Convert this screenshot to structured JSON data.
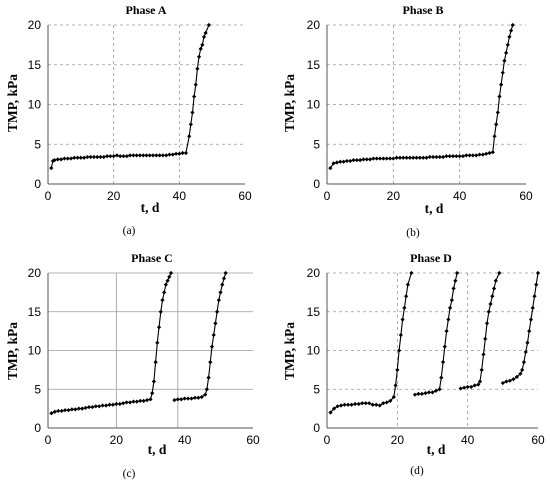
{
  "chart_data": [
    {
      "type": "line",
      "title": "Phase A",
      "caption": "(a)",
      "xlabel": "t, d",
      "ylabel": "TMP, kPa",
      "xlim": [
        0,
        60
      ],
      "ylim": [
        0,
        20
      ],
      "xticks": [
        0,
        20,
        40,
        60
      ],
      "yticks": [
        0,
        5,
        10,
        15,
        20
      ],
      "grid": "dashed",
      "grid_x": [
        20,
        40
      ],
      "series": [
        {
          "x": [
            1,
            1.5,
            2,
            3,
            4,
            5,
            6,
            7,
            8,
            9,
            10,
            11,
            12,
            13,
            14,
            15,
            16,
            17,
            18,
            19,
            20,
            21,
            22,
            23,
            24,
            25,
            26,
            27,
            28,
            29,
            30,
            31,
            32,
            33,
            34,
            35,
            36,
            37,
            38,
            39,
            40,
            41,
            42,
            43,
            43.5,
            44,
            44.5,
            45,
            45.5,
            46,
            46.5,
            47,
            47.5,
            48,
            49
          ],
          "y": [
            2.0,
            2.9,
            3.0,
            3.1,
            3.1,
            3.2,
            3.2,
            3.2,
            3.3,
            3.3,
            3.3,
            3.3,
            3.4,
            3.4,
            3.4,
            3.4,
            3.4,
            3.4,
            3.5,
            3.5,
            3.5,
            3.6,
            3.5,
            3.5,
            3.5,
            3.6,
            3.6,
            3.6,
            3.6,
            3.6,
            3.6,
            3.6,
            3.6,
            3.6,
            3.6,
            3.6,
            3.6,
            3.7,
            3.7,
            3.8,
            3.8,
            3.9,
            3.9,
            6.0,
            7.5,
            9.0,
            11.0,
            12.5,
            14.5,
            16.0,
            17.0,
            17.5,
            18.5,
            19.0,
            20.0
          ]
        }
      ]
    },
    {
      "type": "line",
      "title": "Phase B",
      "caption": "(b)",
      "xlabel": "t, d",
      "ylabel": "TMP, kPa",
      "xlim": [
        0,
        60
      ],
      "ylim": [
        0,
        20
      ],
      "xticks": [
        0,
        20,
        40,
        60
      ],
      "yticks": [
        0,
        5,
        10,
        15,
        20
      ],
      "grid": "dashed",
      "grid_x": [
        20,
        40
      ],
      "series": [
        {
          "x": [
            1,
            2,
            3,
            4,
            5,
            6,
            7,
            8,
            9,
            10,
            11,
            12,
            13,
            14,
            15,
            16,
            17,
            18,
            19,
            20,
            21,
            22,
            23,
            24,
            25,
            26,
            27,
            28,
            29,
            30,
            31,
            32,
            33,
            34,
            35,
            36,
            37,
            38,
            39,
            40,
            41,
            42,
            43,
            44,
            45,
            46,
            47,
            48,
            49,
            50,
            50.5,
            51,
            51.5,
            52,
            52.5,
            53,
            53.5,
            54,
            54.5,
            55,
            55.5,
            56
          ],
          "y": [
            2.0,
            2.6,
            2.7,
            2.8,
            2.8,
            2.9,
            2.9,
            3.0,
            3.0,
            3.0,
            3.1,
            3.1,
            3.1,
            3.2,
            3.2,
            3.2,
            3.2,
            3.2,
            3.2,
            3.2,
            3.3,
            3.3,
            3.3,
            3.3,
            3.3,
            3.3,
            3.3,
            3.3,
            3.3,
            3.3,
            3.4,
            3.4,
            3.4,
            3.4,
            3.4,
            3.5,
            3.5,
            3.5,
            3.5,
            3.5,
            3.5,
            3.6,
            3.6,
            3.6,
            3.6,
            3.7,
            3.7,
            3.8,
            3.9,
            4.0,
            6.0,
            7.5,
            9.0,
            11.0,
            12.5,
            14.0,
            15.5,
            16.5,
            17.5,
            18.5,
            19.3,
            20.0
          ]
        }
      ]
    },
    {
      "type": "line",
      "title": "Phase C",
      "caption": "(c)",
      "xlabel": "t, d",
      "ylabel": "TMP, kPa",
      "xlim": [
        0,
        60
      ],
      "ylim": [
        0,
        20
      ],
      "xticks": [
        0,
        20,
        40,
        60
      ],
      "yticks": [
        0,
        5,
        10,
        15,
        20
      ],
      "grid": "solid",
      "grid_x": [
        20,
        38
      ],
      "series": [
        {
          "x": [
            1,
            2,
            3,
            4,
            5,
            6,
            7,
            8,
            9,
            10,
            11,
            12,
            13,
            14,
            15,
            16,
            17,
            18,
            19,
            20,
            21,
            22,
            23,
            24,
            25,
            26,
            27,
            28,
            29,
            30,
            30.5,
            31,
            31.5,
            32,
            32.5,
            33,
            33.5,
            34,
            34.5,
            35,
            35.5,
            36
          ],
          "y": [
            1.9,
            2.1,
            2.2,
            2.2,
            2.3,
            2.3,
            2.4,
            2.4,
            2.5,
            2.5,
            2.6,
            2.7,
            2.7,
            2.8,
            2.8,
            2.9,
            2.9,
            3.0,
            3.0,
            3.1,
            3.1,
            3.2,
            3.3,
            3.3,
            3.4,
            3.4,
            3.5,
            3.5,
            3.6,
            3.7,
            4.5,
            6.0,
            8.5,
            11.0,
            13.0,
            15.0,
            16.5,
            17.5,
            18.5,
            19.0,
            19.5,
            20.0
          ]
        },
        {
          "x": [
            37,
            38,
            39,
            40,
            41,
            42,
            43,
            44,
            45,
            46,
            46.5,
            47,
            47.5,
            48,
            48.5,
            49,
            49.5,
            50,
            50.5,
            51,
            51.5,
            52
          ],
          "y": [
            3.6,
            3.7,
            3.7,
            3.8,
            3.8,
            3.8,
            3.9,
            3.9,
            4.0,
            4.3,
            5.0,
            6.5,
            8.5,
            10.5,
            12.0,
            13.5,
            15.0,
            16.5,
            17.5,
            18.5,
            19.3,
            20.0
          ]
        }
      ]
    },
    {
      "type": "line",
      "title": "Phase D",
      "caption": "(d)",
      "xlabel": "t, d",
      "ylabel": "TMP, kPa",
      "xlim": [
        0,
        60
      ],
      "ylim": [
        0,
        20
      ],
      "xticks": [
        0,
        20,
        40,
        60
      ],
      "yticks": [
        0,
        5,
        10,
        15,
        20
      ],
      "grid": "dashed",
      "grid_x": [
        20,
        40
      ],
      "series": [
        {
          "x": [
            1,
            2,
            3,
            4,
            5,
            6,
            7,
            8,
            9,
            10,
            11,
            12,
            13,
            14,
            15,
            16,
            17,
            18,
            19,
            19.5,
            20,
            20.5,
            21,
            21.5,
            22,
            22.5,
            23,
            24
          ],
          "y": [
            2.0,
            2.5,
            2.8,
            2.9,
            3.0,
            3.0,
            3.0,
            3.1,
            3.1,
            3.2,
            3.2,
            3.2,
            3.0,
            3.0,
            2.9,
            3.2,
            3.3,
            3.5,
            4.0,
            5.5,
            7.5,
            10.0,
            12.0,
            14.0,
            15.5,
            17.0,
            18.5,
            20.0
          ]
        },
        {
          "x": [
            25,
            26,
            27,
            28,
            29,
            30,
            31,
            32,
            32.5,
            33,
            33.5,
            34,
            34.5,
            35,
            35.5,
            36,
            36.5,
            37
          ],
          "y": [
            4.3,
            4.4,
            4.4,
            4.5,
            4.6,
            4.6,
            4.8,
            5.0,
            6.5,
            8.5,
            10.5,
            12.5,
            14.0,
            15.5,
            16.5,
            18.0,
            19.0,
            20.0
          ]
        },
        {
          "x": [
            38,
            39,
            40,
            41,
            42,
            43,
            43.5,
            44,
            44.5,
            45,
            45.5,
            46,
            46.5,
            47,
            47.5,
            48,
            49
          ],
          "y": [
            5.1,
            5.2,
            5.3,
            5.3,
            5.5,
            5.6,
            6.0,
            7.5,
            9.5,
            11.5,
            13.5,
            15.0,
            16.0,
            17.0,
            18.0,
            19.0,
            20.0
          ]
        },
        {
          "x": [
            50,
            51,
            52,
            53,
            54,
            55,
            55.5,
            56,
            56.5,
            57,
            57.5,
            58,
            58.5,
            59,
            59.5,
            60
          ],
          "y": [
            5.8,
            6.0,
            6.1,
            6.3,
            6.6,
            7.0,
            7.5,
            8.5,
            9.8,
            11.0,
            12.5,
            14.0,
            15.5,
            17.0,
            18.5,
            20.0
          ]
        }
      ]
    }
  ]
}
